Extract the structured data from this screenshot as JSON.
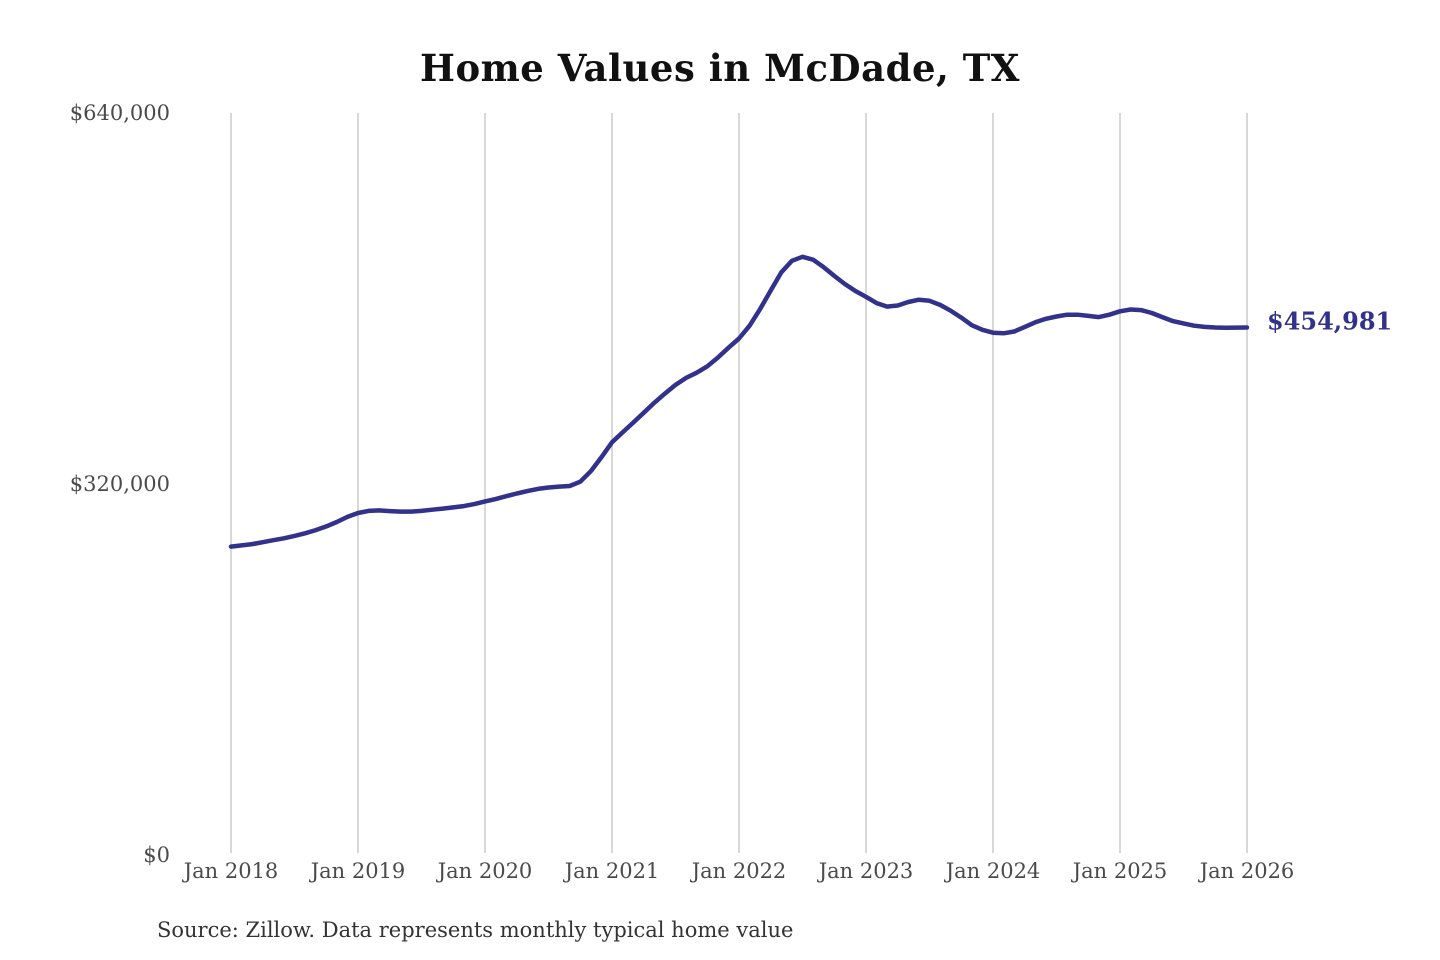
{
  "chart_data": {
    "type": "line",
    "title": "Home Values in McDade, TX",
    "source_note": "Source: Zillow. Data represents monthly typical home value",
    "end_label": "$454,981",
    "end_value": 454981,
    "x_start": "Jan 2018",
    "x_end": "Jan 2026",
    "interval": "monthly",
    "x_tick_labels": [
      "Jan 2018",
      "Jan 2019",
      "Jan 2020",
      "Jan 2021",
      "Jan 2022",
      "Jan 2023",
      "Jan 2024",
      "Jan 2025",
      "Jan 2026"
    ],
    "y_tick_labels": [
      "$0",
      "$320,000",
      "$640,000"
    ],
    "y_tick_values": [
      0,
      320000,
      640000
    ],
    "ylim": [
      0,
      640000
    ],
    "grid": "vertical-only",
    "legend": "none",
    "colors": {
      "line": "#32328c",
      "grid": "#cccccc",
      "axis_text": "#4a4a4a",
      "title_text": "#111111",
      "source_text": "#333333",
      "end_label_text": "#32328c"
    },
    "series": [
      {
        "name": "Typical home value",
        "values": [
          266000,
          267000,
          268200,
          269800,
          271500,
          273200,
          275200,
          277500,
          280200,
          283400,
          287200,
          291600,
          295000,
          296800,
          297200,
          296600,
          296200,
          296200,
          296800,
          297800,
          298800,
          299800,
          300900,
          302700,
          305000,
          307000,
          309500,
          311800,
          313900,
          315800,
          317000,
          317800,
          318300,
          322000,
          331000,
          343000,
          356000,
          364500,
          373000,
          381500,
          390000,
          398000,
          405500,
          411500,
          416000,
          421500,
          429000,
          437500,
          445500,
          456500,
          471000,
          487000,
          502500,
          512500,
          516000,
          513500,
          507000,
          499500,
          492500,
          486500,
          481500,
          476000,
          473000,
          474000,
          477000,
          479000,
          478000,
          474500,
          469500,
          463500,
          457000,
          453000,
          450500,
          450000,
          451500,
          455500,
          459500,
          462500,
          464500,
          466000,
          466000,
          465000,
          464000,
          466000,
          469000,
          470500,
          470000,
          467500,
          464000,
          460500,
          458500,
          456500,
          455500,
          455000,
          454800,
          454900,
          454981
        ]
      }
    ]
  }
}
